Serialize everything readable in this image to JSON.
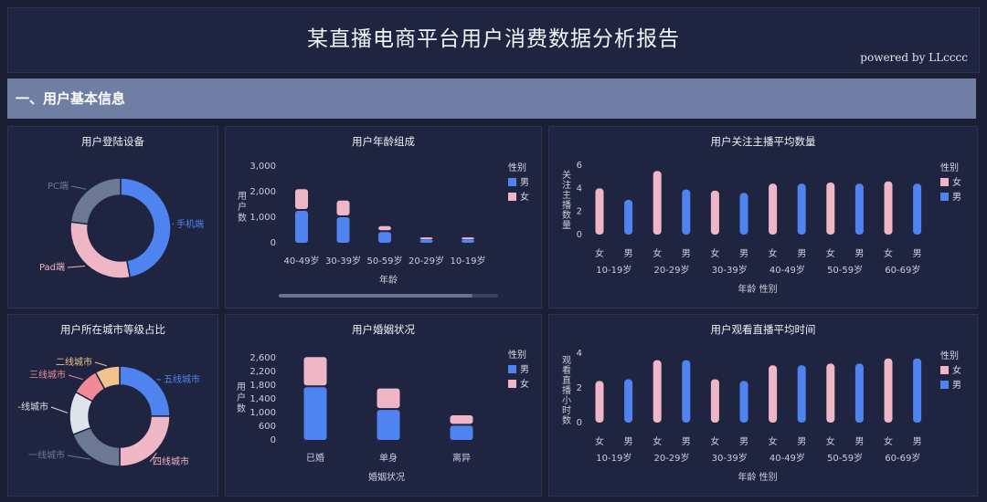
{
  "header": {
    "title": "某直播电商平台用户消费数据分析报告",
    "powered": "powered by LLcccc"
  },
  "section": {
    "title": "一、用户基本信息"
  },
  "colors": {
    "male": "#4f84f0",
    "female": "#efb7c6",
    "background": "#1a1f33",
    "panel": "#1f2540",
    "section": "#6f7ea2"
  },
  "charts": {
    "device": {
      "title": "用户登陆设备",
      "chart_data": {
        "type": "pie",
        "donut": true,
        "slices": [
          {
            "label": "手机端",
            "value": 47,
            "color": "#4f84f0"
          },
          {
            "label": "Pad端",
            "value": 30,
            "color": "#efb7c6"
          },
          {
            "label": "PC端",
            "value": 23,
            "color": "#6c7994"
          }
        ]
      }
    },
    "age": {
      "title": "用户年龄组成",
      "chart_data": {
        "type": "bar",
        "stacked": true,
        "categories": [
          "40-49岁",
          "30-39岁",
          "50-59岁",
          "20-29岁",
          "10-19岁"
        ],
        "series": [
          {
            "name": "男",
            "values": [
              1250,
              1000,
              420,
              130,
              130
            ]
          },
          {
            "name": "女",
            "values": [
              850,
              650,
              230,
              80,
              80
            ]
          }
        ],
        "xlabel": "年龄",
        "ylabel": "用户数",
        "yticks": [
          "3,000",
          "2,000",
          "1,000",
          "0"
        ],
        "ylim": [
          0,
          3000
        ],
        "legend_title": "性别",
        "legend_position": "right"
      }
    },
    "follow": {
      "title": "用户关注主播平均数量",
      "chart_data": {
        "type": "bar",
        "groups": [
          "10-19岁",
          "20-29岁",
          "30-39岁",
          "40-49岁",
          "50-59岁",
          "60-69岁"
        ],
        "bars": [
          {
            "label": "女",
            "series": "女",
            "value": 4.0
          },
          {
            "label": "男",
            "series": "男",
            "value": 3.0
          },
          {
            "label": "女",
            "series": "女",
            "value": 5.5
          },
          {
            "label": "男",
            "series": "男",
            "value": 3.9
          },
          {
            "label": "女",
            "series": "女",
            "value": 3.8
          },
          {
            "label": "男",
            "series": "男",
            "value": 3.6
          },
          {
            "label": "女",
            "series": "女",
            "value": 4.4
          },
          {
            "label": "男",
            "series": "男",
            "value": 4.4
          },
          {
            "label": "女",
            "series": "女",
            "value": 4.5
          },
          {
            "label": "男",
            "series": "男",
            "value": 4.4
          },
          {
            "label": "女",
            "series": "女",
            "value": 4.6
          },
          {
            "label": "男",
            "series": "男",
            "value": 4.4
          }
        ],
        "xlabel": "年龄  性别",
        "ylabel": "关注主播数量",
        "yticks": [
          "6",
          "4",
          "2",
          "0"
        ],
        "ylim": [
          0,
          6
        ],
        "legend_title": "性别",
        "legend": [
          "女",
          "男"
        ],
        "legend_position": "right"
      }
    },
    "city": {
      "title": "用户所在城市等级占比",
      "chart_data": {
        "type": "pie",
        "donut": true,
        "slices": [
          {
            "label": "五线城市",
            "value": 25,
            "color": "#4f84f0"
          },
          {
            "label": "四线城市",
            "value": 25,
            "color": "#efb7c6"
          },
          {
            "label": "一线城市",
            "value": 19,
            "color": "#6c7994"
          },
          {
            "label": "-线城市",
            "value": 14,
            "color": "#dfe3ea"
          },
          {
            "label": "三线城市",
            "value": 9,
            "color": "#f08a96"
          },
          {
            "label": "二线城市",
            "value": 8,
            "color": "#f0c48c"
          }
        ]
      }
    },
    "marriage": {
      "title": "用户婚姻状况",
      "chart_data": {
        "type": "bar",
        "stacked": true,
        "categories": [
          "已婚",
          "单身",
          "离异"
        ],
        "series": [
          {
            "name": "男",
            "values": [
              1670,
              950,
              450
            ]
          },
          {
            "name": "女",
            "values": [
              950,
              680,
              330
            ]
          }
        ],
        "xlabel": "婚姻状况",
        "ylabel": "用户数",
        "yticks": [
          "2,600",
          "2,200",
          "1,800",
          "1,400",
          "1,000",
          "600",
          "0"
        ],
        "ylim": [
          0,
          2600
        ],
        "legend_title": "性别",
        "legend_position": "right"
      }
    },
    "watch": {
      "title": "用户观看直播平均时间",
      "chart_data": {
        "type": "bar",
        "groups": [
          "10-19岁",
          "20-29岁",
          "30-39岁",
          "40-49岁",
          "50-59岁",
          "60-69岁"
        ],
        "bars": [
          {
            "label": "女",
            "series": "女",
            "value": 2.4
          },
          {
            "label": "男",
            "series": "男",
            "value": 2.5
          },
          {
            "label": "女",
            "series": "女",
            "value": 3.6
          },
          {
            "label": "男",
            "series": "男",
            "value": 3.6
          },
          {
            "label": "女",
            "series": "女",
            "value": 2.5
          },
          {
            "label": "男",
            "series": "男",
            "value": 2.4
          },
          {
            "label": "女",
            "series": "女",
            "value": 3.3
          },
          {
            "label": "男",
            "series": "男",
            "value": 3.3
          },
          {
            "label": "女",
            "series": "女",
            "value": 3.4
          },
          {
            "label": "男",
            "series": "男",
            "value": 3.4
          },
          {
            "label": "女",
            "series": "女",
            "value": 3.7
          },
          {
            "label": "男",
            "series": "男",
            "value": 3.7
          }
        ],
        "xlabel": "年龄  性别",
        "ylabel": "观看直播小时数",
        "yticks": [
          "4",
          "2",
          "0"
        ],
        "ylim": [
          0,
          4
        ],
        "legend_title": "性别",
        "legend": [
          "女",
          "男"
        ],
        "legend_position": "right"
      }
    }
  }
}
